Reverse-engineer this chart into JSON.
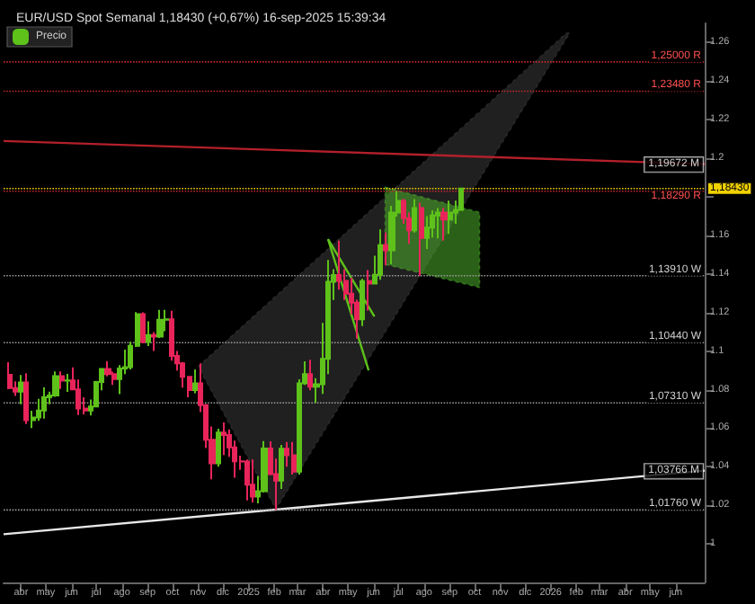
{
  "chart_data": {
    "type": "candlestick",
    "title": "EUR/USD Spot Semanal 1,18430 (+0,67%) 16-sep-2025 15:39:34",
    "legend": "top left",
    "series": [
      {
        "name": "Precio",
        "x": [
          "2024-03-18",
          "2024-03-25",
          "2024-04-01",
          "2024-04-08",
          "2024-04-15",
          "2024-04-22",
          "2024-04-29",
          "2024-05-06",
          "2024-05-13",
          "2024-05-20",
          "2024-05-27",
          "2024-06-03",
          "2024-06-10",
          "2024-06-17",
          "2024-06-24",
          "2024-07-01",
          "2024-07-08",
          "2024-07-15",
          "2024-07-22",
          "2024-07-29",
          "2024-08-05",
          "2024-08-12",
          "2024-08-19",
          "2024-08-26",
          "2024-09-02",
          "2024-09-09",
          "2024-09-16",
          "2024-09-23",
          "2024-09-30",
          "2024-10-07",
          "2024-10-14",
          "2024-10-21",
          "2024-10-28",
          "2024-11-04",
          "2024-11-11",
          "2024-11-18",
          "2024-11-25",
          "2024-12-02",
          "2024-12-09",
          "2024-12-16",
          "2024-12-23",
          "2024-12-30",
          "2025-01-06",
          "2025-01-13",
          "2025-01-20",
          "2025-01-27",
          "2025-02-03",
          "2025-02-10",
          "2025-02-17",
          "2025-02-24",
          "2025-03-03",
          "2025-03-10",
          "2025-03-17",
          "2025-03-24",
          "2025-03-31",
          "2025-04-07",
          "2025-04-14",
          "2025-04-21",
          "2025-04-28",
          "2025-05-05",
          "2025-05-12",
          "2025-05-19",
          "2025-05-26",
          "2025-06-02",
          "2025-06-09",
          "2025-06-16",
          "2025-06-23",
          "2025-06-30",
          "2025-07-07",
          "2025-07-14",
          "2025-07-21",
          "2025-07-28",
          "2025-08-04",
          "2025-08-11",
          "2025-08-18",
          "2025-08-25",
          "2025-09-01",
          "2025-09-08",
          "2025-09-15"
        ],
        "ohlc": [
          [
            1.0877,
            1.0942,
            1.0802,
            1.0808
          ],
          [
            1.0808,
            1.0843,
            1.0768,
            1.079
          ],
          [
            1.079,
            1.0876,
            1.0724,
            1.0837
          ],
          [
            1.0837,
            1.0885,
            1.0622,
            1.0642
          ],
          [
            1.0642,
            1.069,
            1.0601,
            1.0656
          ],
          [
            1.0656,
            1.0752,
            1.0638,
            1.0692
          ],
          [
            1.0692,
            1.0812,
            1.065,
            1.076
          ],
          [
            1.076,
            1.079,
            1.0724,
            1.077
          ],
          [
            1.077,
            1.0895,
            1.0763,
            1.087
          ],
          [
            1.087,
            1.0895,
            1.0804,
            1.0847
          ],
          [
            1.0847,
            1.0882,
            1.0788,
            1.0848
          ],
          [
            1.0848,
            1.0916,
            1.0801,
            1.0801
          ],
          [
            1.0801,
            1.0852,
            1.0668,
            1.0702
          ],
          [
            1.0702,
            1.0761,
            1.0672,
            1.0692
          ],
          [
            1.0692,
            1.0749,
            1.0666,
            1.0713
          ],
          [
            1.0713,
            1.0845,
            1.071,
            1.084
          ],
          [
            1.084,
            1.091,
            1.0797,
            1.0907
          ],
          [
            1.0907,
            1.0948,
            1.0869,
            1.0881
          ],
          [
            1.0881,
            1.0893,
            1.0825,
            1.0855
          ],
          [
            1.0855,
            1.0927,
            1.0777,
            1.091
          ],
          [
            1.091,
            1.1008,
            1.0881,
            1.0917
          ],
          [
            1.0917,
            1.1048,
            1.0905,
            1.1027
          ],
          [
            1.1027,
            1.1202,
            1.1022,
            1.1192
          ],
          [
            1.1192,
            1.1201,
            1.104,
            1.1047
          ],
          [
            1.1047,
            1.1155,
            1.1026,
            1.1083
          ],
          [
            1.1083,
            1.1099,
            1.1001,
            1.1075
          ],
          [
            1.1075,
            1.1214,
            1.1068,
            1.1163
          ],
          [
            1.1163,
            1.1214,
            1.1103,
            1.1165
          ],
          [
            1.1165,
            1.1209,
            1.0951,
            1.0975
          ],
          [
            1.0975,
            1.1001,
            1.0899,
            1.0936
          ],
          [
            1.0936,
            1.0944,
            1.0811,
            1.0866
          ],
          [
            1.0866,
            1.087,
            1.0761,
            1.0798
          ],
          [
            1.0798,
            1.0905,
            1.0782,
            1.0833
          ],
          [
            1.0833,
            1.0937,
            1.0683,
            1.072
          ],
          [
            1.072,
            1.0725,
            1.0497,
            1.054
          ],
          [
            1.054,
            1.0609,
            1.0335,
            1.0418
          ],
          [
            1.0418,
            1.0597,
            1.04,
            1.0577
          ],
          [
            1.0577,
            1.063,
            1.0461,
            1.0565
          ],
          [
            1.0565,
            1.0594,
            1.0452,
            1.05
          ],
          [
            1.05,
            1.0535,
            1.0343,
            1.0428
          ],
          [
            1.0428,
            1.0457,
            1.0384,
            1.0427
          ],
          [
            1.0427,
            1.0437,
            1.0226,
            1.0307
          ],
          [
            1.0307,
            1.0437,
            1.0215,
            1.0245
          ],
          [
            1.0245,
            1.0353,
            1.021,
            1.0273
          ],
          [
            1.0273,
            1.0533,
            1.0266,
            1.0495
          ],
          [
            1.0495,
            1.0532,
            1.0356,
            1.0362
          ],
          [
            1.0362,
            1.0442,
            1.0176,
            1.0328
          ],
          [
            1.0328,
            1.0513,
            1.0285,
            1.0493
          ],
          [
            1.0493,
            1.0528,
            1.04,
            1.046
          ],
          [
            1.046,
            1.0529,
            1.036,
            1.0375
          ],
          [
            1.0375,
            1.0854,
            1.036,
            1.0833
          ],
          [
            1.0833,
            1.0947,
            1.0824,
            1.088
          ],
          [
            1.088,
            1.0955,
            1.0797,
            1.0815
          ],
          [
            1.0815,
            1.0859,
            1.0733,
            1.0828
          ],
          [
            1.0828,
            1.1146,
            1.0778,
            1.096
          ],
          [
            1.096,
            1.1473,
            1.088,
            1.136
          ],
          [
            1.136,
            1.1425,
            1.1265,
            1.1395
          ],
          [
            1.1395,
            1.1573,
            1.1319,
            1.1364
          ],
          [
            1.1364,
            1.1425,
            1.1265,
            1.1298
          ],
          [
            1.1298,
            1.138,
            1.119,
            1.1251
          ],
          [
            1.1251,
            1.1266,
            1.1065,
            1.1165
          ],
          [
            1.1165,
            1.1375,
            1.113,
            1.1363
          ],
          [
            1.1363,
            1.142,
            1.121,
            1.135
          ],
          [
            1.135,
            1.1495,
            1.1345,
            1.1396
          ],
          [
            1.1396,
            1.1631,
            1.137,
            1.155
          ],
          [
            1.155,
            1.1615,
            1.1445,
            1.1523
          ],
          [
            1.1523,
            1.1754,
            1.145,
            1.1719
          ],
          [
            1.1719,
            1.183,
            1.1698,
            1.1779
          ],
          [
            1.1779,
            1.179,
            1.166,
            1.169
          ],
          [
            1.169,
            1.172,
            1.1557,
            1.1627
          ],
          [
            1.1627,
            1.1789,
            1.1615,
            1.1742
          ],
          [
            1.1742,
            1.177,
            1.1391,
            1.1587
          ],
          [
            1.1587,
            1.17,
            1.153,
            1.1641
          ],
          [
            1.1641,
            1.173,
            1.1589,
            1.1703
          ],
          [
            1.1703,
            1.1742,
            1.1585,
            1.1719
          ],
          [
            1.1719,
            1.1743,
            1.1573,
            1.1683
          ],
          [
            1.1683,
            1.178,
            1.1608,
            1.1718
          ],
          [
            1.1718,
            1.178,
            1.166,
            1.1733
          ],
          [
            1.1733,
            1.1843,
            1.1728,
            1.1843
          ]
        ]
      },
      {
        "type": "area",
        "color": "#3a3a3a",
        "x": [
          "2024-11-01",
          "2026-01-20",
          "2026-01-24",
          "2025-02-03"
        ],
        "values": [
          1.092,
          1.265,
          1.265,
          1.018
        ]
      },
      {
        "type": "area",
        "color": "#4caf2a",
        "x": [
          "2025-06-15",
          "2025-10-07",
          "2025-10-07",
          "2025-06-15"
        ],
        "values": [
          1.185,
          1.172,
          1.133,
          1.145
        ]
      },
      {
        "type": "line",
        "color": "#5ec21a",
        "x": [
          "2025-04-07",
          "2025-05-26"
        ],
        "values": [
          1.158,
          1.09
        ]
      },
      {
        "type": "line",
        "color": "#5ec21a",
        "x": [
          "2025-04-07",
          "2025-06-02"
        ],
        "values": [
          1.158,
          1.118
        ]
      },
      {
        "type": "line",
        "color": "#b3202a",
        "x": [
          "2024-03-11",
          "2026-07-06"
        ],
        "values": [
          1.209,
          1.197
        ]
      },
      {
        "type": "line",
        "color": "#e8e8e8",
        "x": [
          "2024-03-11",
          "2026-07-06"
        ],
        "values": [
          1.005,
          1.038
        ]
      }
    ],
    "ref_lines": [
      {
        "axis": "y",
        "value": 1.25,
        "label": "1,25000 R",
        "color": "#c0282d",
        "line_style": "dotted"
      },
      {
        "axis": "y",
        "value": 1.2348,
        "label": "1,23480 R",
        "color": "#c0282d",
        "line_style": "dotted"
      },
      {
        "axis": "y",
        "value": 1.1829,
        "label": "1,18290 R",
        "color": "#c0282d",
        "line_style": "dotted"
      },
      {
        "axis": "y",
        "value": 1.1391,
        "label": "1,13910 W",
        "color": "#9a9a9a",
        "line_style": "dotted"
      },
      {
        "axis": "y",
        "value": 1.1044,
        "label": "1,10440 W",
        "color": "#9a9a9a",
        "line_style": "dotted"
      },
      {
        "axis": "y",
        "value": 1.0731,
        "label": "1,07310 W",
        "color": "#9a9a9a",
        "line_style": "dotted"
      },
      {
        "axis": "y",
        "value": 1.0176,
        "label": "1,01760 W",
        "color": "#9a9a9a",
        "line_style": "dotted"
      },
      {
        "axis": "y",
        "value": 1.1843,
        "label": "1,18430",
        "color": "#f0d000",
        "line_style": "dotted"
      }
    ],
    "annotations": [
      {
        "text": "1,19672 M",
        "x": "2026-07-06",
        "y": 1.19672
      },
      {
        "text": "1,03766 M",
        "x": "2026-07-06",
        "y": 1.03766
      }
    ],
    "xlim": [
      "2024-03-11",
      "2026-07-06"
    ],
    "xticks": [
      {
        "value": "2024-04-01",
        "label": "abr"
      },
      {
        "value": "2024-05-01",
        "label": "may"
      },
      {
        "value": "2024-06-01",
        "label": "jun"
      },
      {
        "value": "2024-07-01",
        "label": "jul"
      },
      {
        "value": "2024-08-01",
        "label": "ago"
      },
      {
        "value": "2024-09-01",
        "label": "sep"
      },
      {
        "value": "2024-10-01",
        "label": "oct"
      },
      {
        "value": "2024-11-01",
        "label": "nov"
      },
      {
        "value": "2024-12-01",
        "label": "dic"
      },
      {
        "value": "2025-01-01",
        "label": "2025"
      },
      {
        "value": "2025-02-01",
        "label": "feb"
      },
      {
        "value": "2025-03-01",
        "label": "mar"
      },
      {
        "value": "2025-04-01",
        "label": "abr"
      },
      {
        "value": "2025-05-01",
        "label": "may"
      },
      {
        "value": "2025-06-01",
        "label": "jun"
      },
      {
        "value": "2025-07-01",
        "label": "jul"
      },
      {
        "value": "2025-08-01",
        "label": "ago"
      },
      {
        "value": "2025-09-01",
        "label": "sep"
      },
      {
        "value": "2025-10-01",
        "label": "oct"
      },
      {
        "value": "2025-11-01",
        "label": "nov"
      },
      {
        "value": "2025-12-01",
        "label": "dic"
      },
      {
        "value": "2026-01-01",
        "label": "2026"
      },
      {
        "value": "2026-02-01",
        "label": "feb"
      },
      {
        "value": "2026-03-01",
        "label": "mar"
      },
      {
        "value": "2026-04-01",
        "label": "abr"
      },
      {
        "value": "2026-05-01",
        "label": "may"
      },
      {
        "value": "2026-06-01",
        "label": "jun"
      }
    ],
    "ylim": [
      0.98,
      1.27
    ],
    "yticks": [
      1,
      1.02,
      1.04,
      1.06,
      1.08,
      1.1,
      1.12,
      1.14,
      1.16,
      {
        "value": 1.18,
        "label": null
      },
      1.2,
      1.22,
      1.24,
      1.26
    ]
  }
}
